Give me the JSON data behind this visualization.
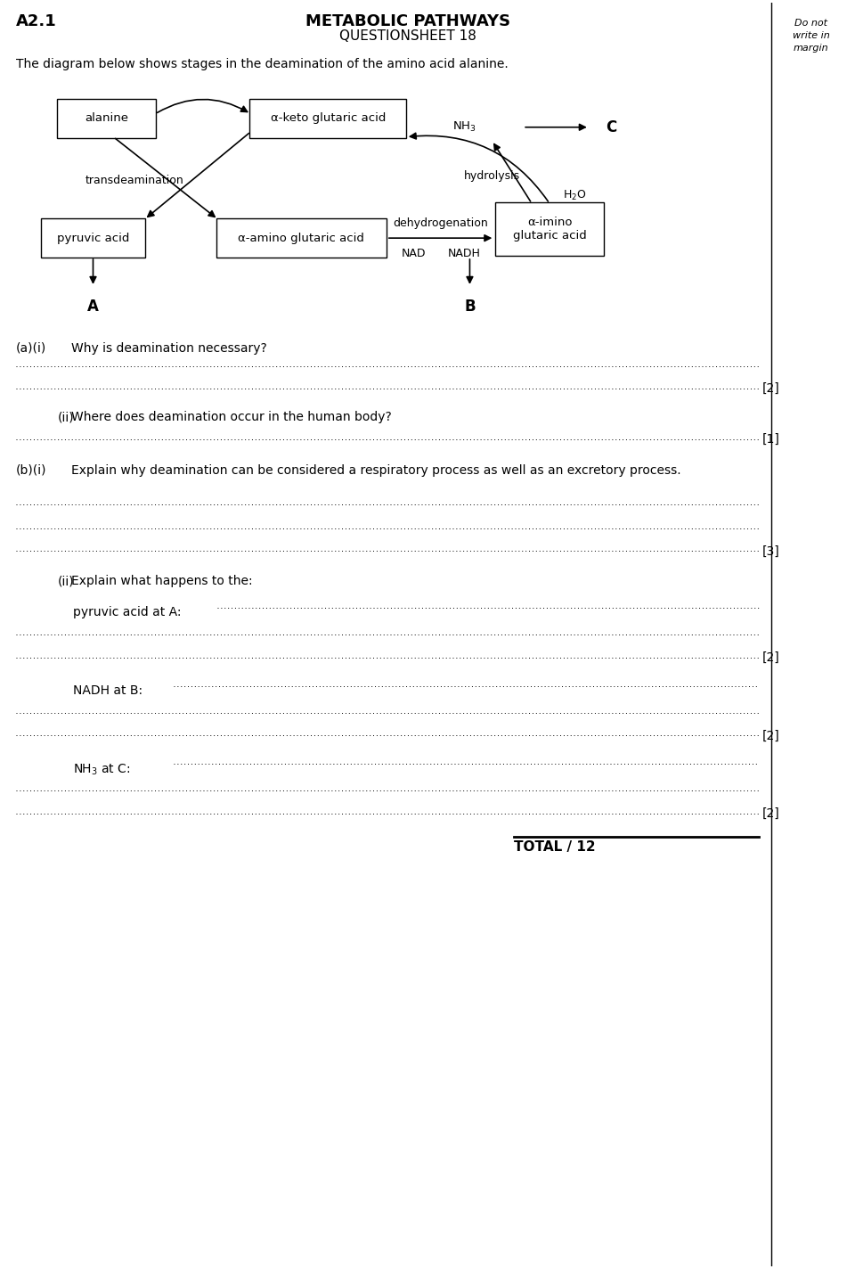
{
  "title_left": "A2.1",
  "title_center": "METABOLIC PATHWAYS",
  "subtitle_center": "QUESTIONSHEET 18",
  "margin_text": [
    "Do not",
    "write in",
    "margin"
  ],
  "intro_text": "The diagram below shows stages in the deamination of the amino acid alanine.",
  "bg_color": "#ffffff"
}
